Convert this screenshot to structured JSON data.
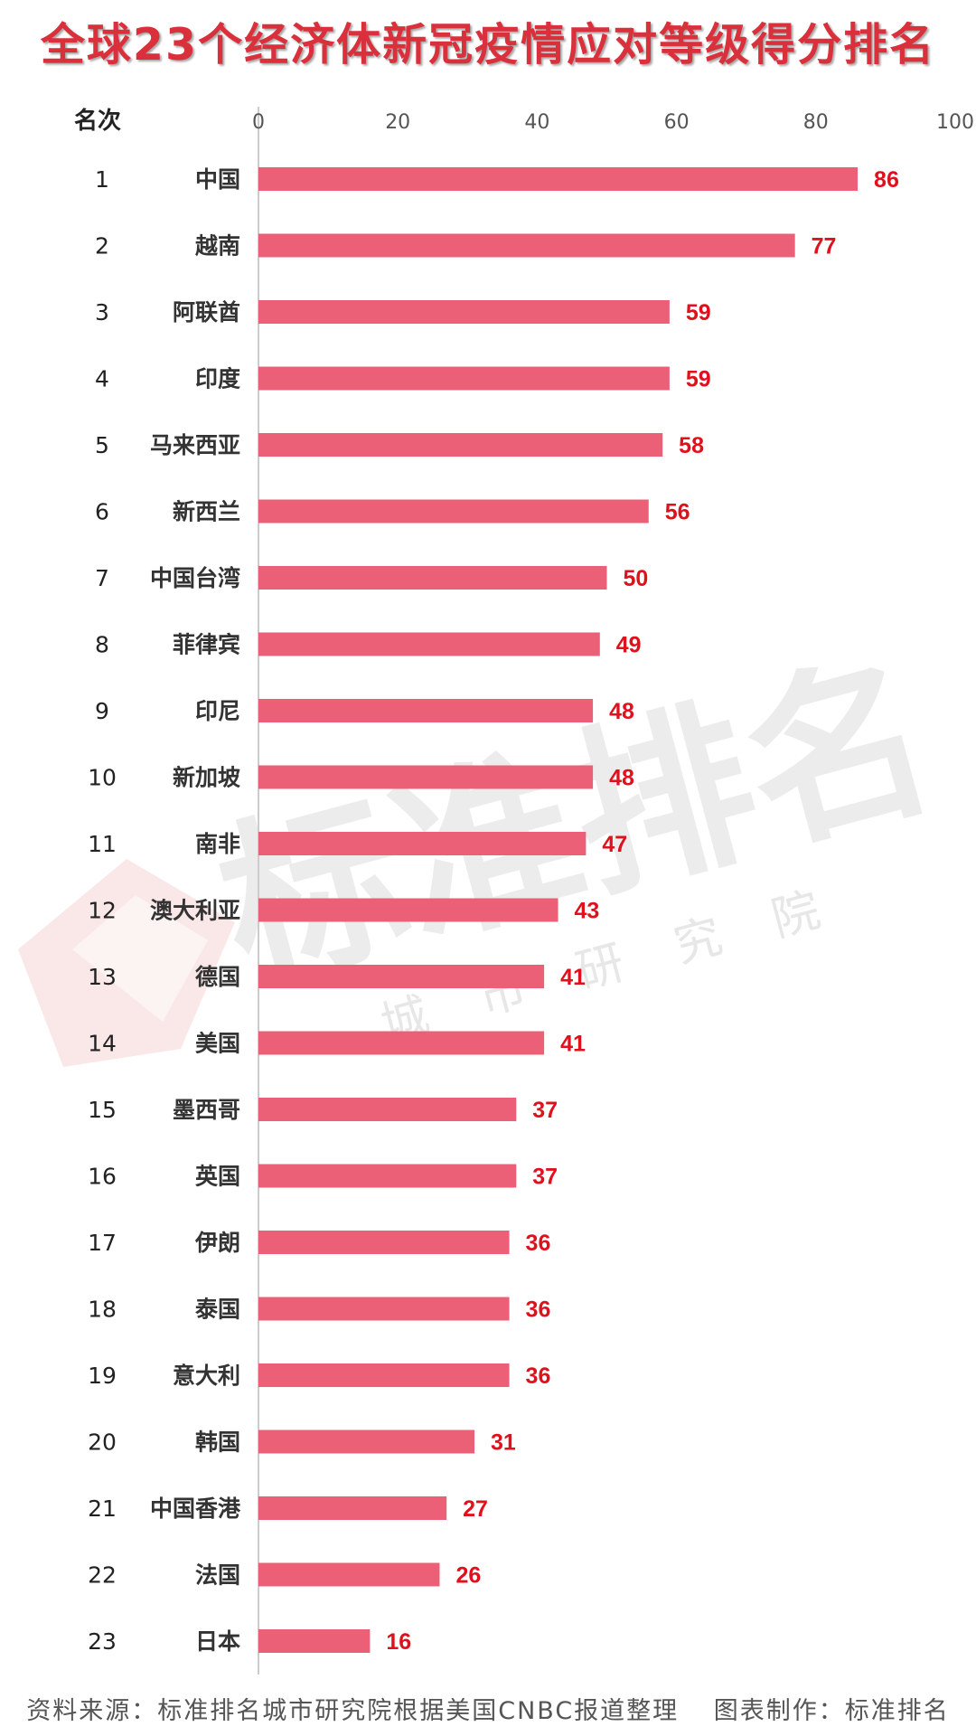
{
  "title": "全球23个经济体新冠疫情应对等级得分排名",
  "rank_header": "名次",
  "watermark": {
    "text": "标准排名",
    "subtext": "城市研究院"
  },
  "footer": {
    "source": "资料来源：标准排名城市研究院根据美国CNBC报道整理",
    "credit": "图表制作：标准排名"
  },
  "colors": {
    "bar": "#ec6077",
    "value_label": "#e0101c",
    "title": "#d9303c",
    "watermark": "#eeeeee",
    "watermark_logo": "#f6d5d7"
  },
  "chart_data": {
    "type": "bar",
    "orientation": "horizontal",
    "xlim": [
      0,
      100
    ],
    "xticks": [
      0,
      20,
      40,
      60,
      80,
      100
    ],
    "categories": [
      "中国",
      "越南",
      "阿联酋",
      "印度",
      "马来西亚",
      "新西兰",
      "中国台湾",
      "菲律宾",
      "印尼",
      "新加坡",
      "南非",
      "澳大利亚",
      "德国",
      "美国",
      "墨西哥",
      "英国",
      "伊朗",
      "泰国",
      "意大利",
      "韩国",
      "中国香港",
      "法国",
      "日本"
    ],
    "ranks": [
      "1",
      "2",
      "3",
      "4",
      "5",
      "6",
      "7",
      "8",
      "9",
      "10",
      "11",
      "12",
      "13",
      "14",
      "15",
      "16",
      "17",
      "18",
      "19",
      "20",
      "21",
      "22",
      "23"
    ],
    "values": [
      86,
      77,
      59,
      59,
      58,
      56,
      50,
      49,
      48,
      48,
      47,
      43,
      41,
      41,
      37,
      37,
      36,
      36,
      36,
      31,
      27,
      26,
      16
    ]
  }
}
